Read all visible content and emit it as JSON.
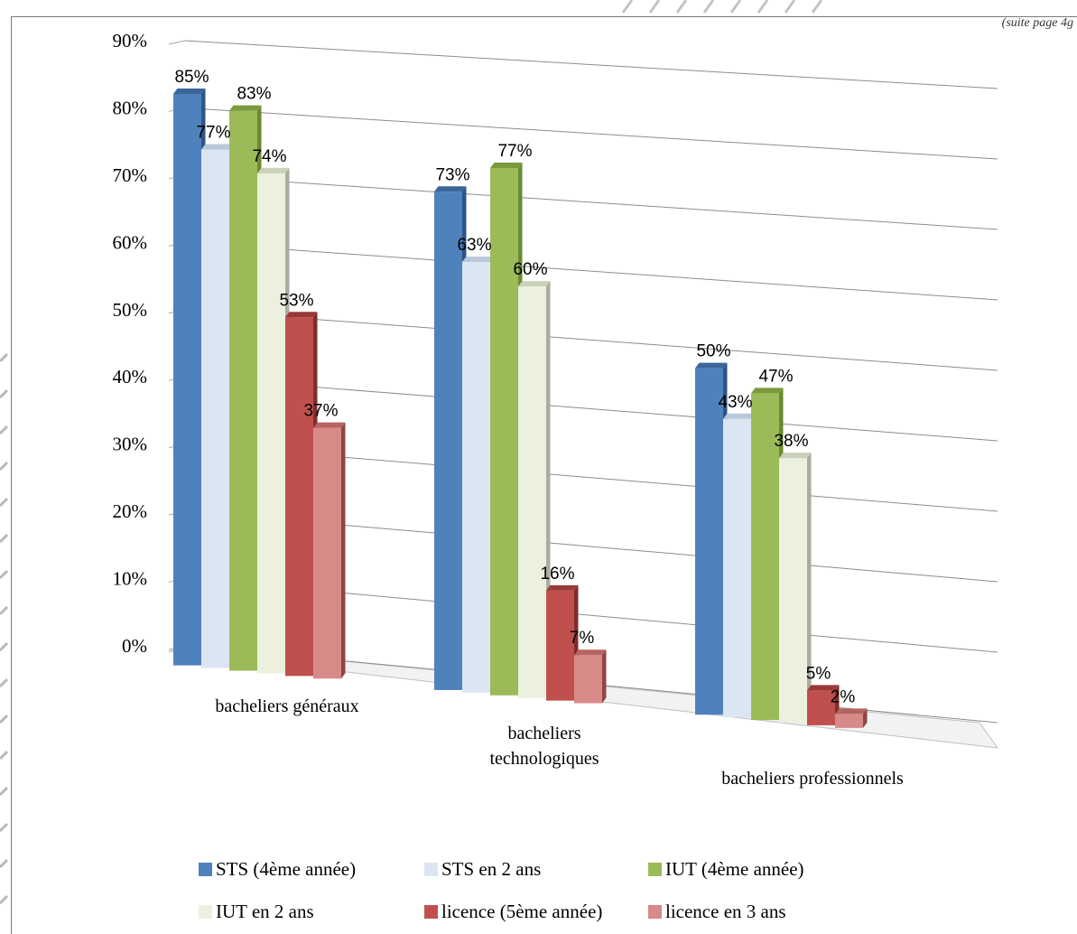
{
  "page": {
    "corner_note": "(suite page 4g"
  },
  "chart_data": {
    "type": "bar",
    "title": "",
    "xlabel": "",
    "ylabel": "",
    "ylim": [
      0,
      90
    ],
    "yticks": [
      "0%",
      "10%",
      "20%",
      "30%",
      "40%",
      "50%",
      "60%",
      "70%",
      "80%",
      "90%"
    ],
    "grid": true,
    "legend_placement": "bottom",
    "categories": [
      "bacheliers généraux",
      "bacheliers technologiques",
      "bacheliers professionnels"
    ],
    "series": [
      {
        "name": "STS (4ème année)",
        "values": [
          85,
          73,
          50
        ],
        "labels": [
          "85%",
          "73%",
          "50%"
        ],
        "color": "#4f81bd",
        "top": "#3a6699",
        "side": "#2e5587"
      },
      {
        "name": "STS en 2 ans",
        "values": [
          77,
          63,
          43
        ],
        "labels": [
          "77%",
          "63%",
          "43%"
        ],
        "color": "#dce6f2",
        "top": "#b9c8db",
        "side": "#a7b1bd"
      },
      {
        "name": "IUT (4ème année)",
        "values": [
          83,
          77,
          47
        ],
        "labels": [
          "83%",
          "77%",
          "47%"
        ],
        "color": "#9bbb59",
        "top": "#7b9a3c",
        "side": "#6a8a2e"
      },
      {
        "name": "IUT en 2 ans",
        "values": [
          74,
          60,
          38
        ],
        "labels": [
          "74%",
          "60%",
          "38%"
        ],
        "color": "#ebf1de",
        "top": "#c9d1b8",
        "side": "#a9ad9f"
      },
      {
        "name": "licence (5ème année)",
        "values": [
          53,
          16,
          5
        ],
        "labels": [
          "53%",
          "16%",
          "5%"
        ],
        "color": "#c0504d",
        "top": "#9a3a37",
        "side": "#7f2d2b"
      },
      {
        "name": "licence en 3 ans",
        "values": [
          37,
          7,
          2
        ],
        "labels": [
          "37%",
          "7%",
          "2%"
        ],
        "color": "#d88a88",
        "top": "#b56461",
        "side": "#8f4543"
      }
    ]
  }
}
